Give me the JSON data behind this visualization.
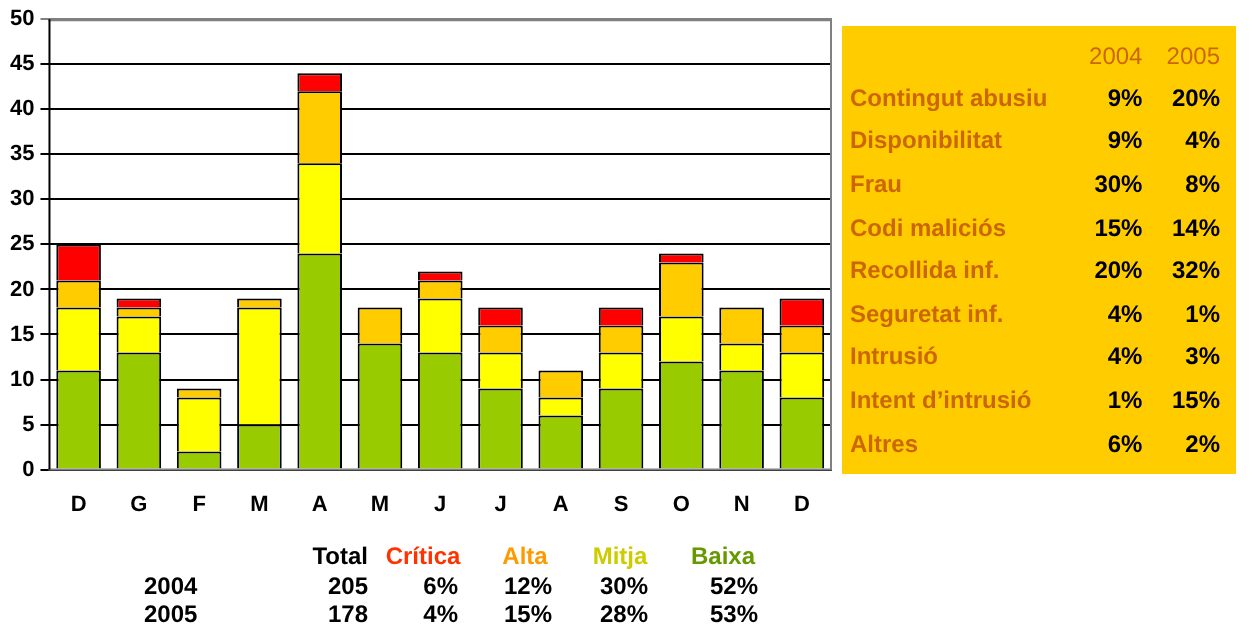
{
  "chart_data": [
    {
      "type": "bar",
      "stacked": true,
      "categories": [
        "D",
        "G",
        "F",
        "M",
        "A",
        "M",
        "J",
        "J",
        "A",
        "S",
        "O",
        "N",
        "D"
      ],
      "series": [
        {
          "color": "#99cc00",
          "values": [
            11,
            13,
            2,
            5,
            24,
            14,
            13,
            9,
            6,
            9,
            12,
            11,
            8
          ]
        },
        {
          "color": "#ffff00",
          "values": [
            7,
            4,
            6,
            13,
            10,
            0,
            6,
            4,
            2,
            4,
            5,
            3,
            5
          ]
        },
        {
          "color": "#ffcc00",
          "values": [
            3,
            1,
            1,
            1,
            8,
            4,
            2,
            3,
            3,
            3,
            6,
            4,
            3
          ]
        },
        {
          "color": "#ff0000",
          "values": [
            4,
            1,
            0,
            0,
            2,
            0,
            1,
            2,
            0,
            2,
            1,
            0,
            3
          ]
        }
      ],
      "ylim": [
        0,
        50
      ],
      "yticks": [
        0,
        5,
        10,
        15,
        20,
        25,
        30,
        35,
        40,
        45,
        50
      ],
      "grid": "y",
      "legend": false
    },
    {
      "type": "other",
      "categories": [
        "Contingut abusiu",
        "Disponibilitat",
        "Frau",
        "Codi maliciós",
        "Recollida inf.",
        "Seguretat inf.",
        "Intrusió",
        "Intent d’intrusió",
        "Altres"
      ],
      "series": [
        {
          "name": "2004",
          "values": [
            9,
            9,
            30,
            15,
            20,
            4,
            4,
            1,
            6
          ],
          "value_labels": [
            "9%",
            "9%",
            "30%",
            "15%",
            "20%",
            "4%",
            "4%",
            "1%",
            "6%"
          ]
        },
        {
          "name": "2005",
          "values": [
            20,
            4,
            8,
            14,
            32,
            1,
            3,
            15,
            2
          ],
          "value_labels": [
            "20%",
            "4%",
            "8%",
            "14%",
            "32%",
            "1%",
            "3%",
            "15%",
            "2%"
          ]
        }
      ]
    },
    {
      "type": "other",
      "categories": [
        "Total",
        "Crítica",
        "Alta",
        "Mitja",
        "Baixa"
      ],
      "colors": [
        "#000000",
        "#ff3300",
        "#ff9900",
        "#cccc00",
        "#669900"
      ],
      "series": [
        {
          "name": "2004",
          "values": [
            205,
            6,
            12,
            30,
            52
          ],
          "value_labels": [
            "205",
            "6%",
            "12%",
            "30%",
            "52%"
          ]
        },
        {
          "name": "2005",
          "values": [
            178,
            4,
            15,
            28,
            53
          ],
          "value_labels": [
            "178",
            "4%",
            "15%",
            "28%",
            "53%"
          ]
        }
      ]
    }
  ]
}
